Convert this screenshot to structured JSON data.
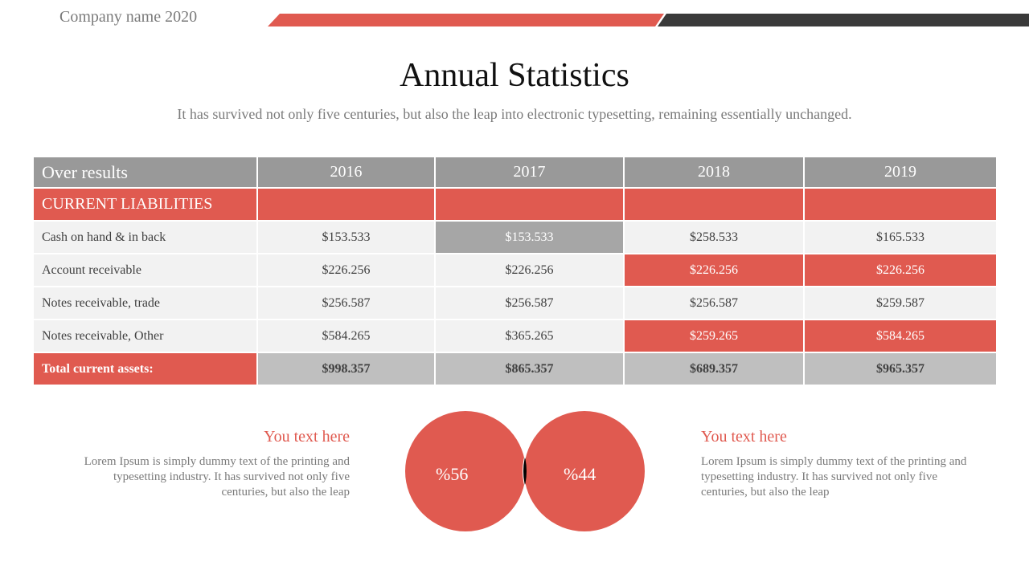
{
  "company": "Company name 2020",
  "colors": {
    "accent": "#e05a50",
    "dark": "#3a3a3a",
    "header_gray": "#999999",
    "total_gray": "#bfbfbf",
    "row_bg": "#f2f2f2"
  },
  "title": "Annual Statistics",
  "subtitle": "It has survived not only five centuries, but also the leap into electronic typesetting, remaining essentially unchanged.",
  "table": {
    "header": [
      "Over results",
      "2016",
      "2017",
      "2018",
      "2019"
    ],
    "section": "CURRENT LIABILITIES",
    "rows": [
      {
        "label": "Cash on hand & in back",
        "values": [
          "$153.533",
          "$153.533",
          "$258.533",
          "$165.533"
        ]
      },
      {
        "label": "Account receivable",
        "values": [
          "$226.256",
          "$226.256",
          "$226.256",
          "$226.256"
        ]
      },
      {
        "label": "Notes receivable, trade",
        "values": [
          "$256.587",
          "$256.587",
          "$256.587",
          "$259.587"
        ]
      },
      {
        "label": "Notes receivable, Other",
        "values": [
          "$584.265",
          "$365.265",
          "$259.265",
          "$584.265"
        ]
      }
    ],
    "total": {
      "label": "Total current assets:",
      "values": [
        "$998.357",
        "$865.357",
        "$689.357",
        "$965.357"
      ]
    }
  },
  "venn": {
    "left_label": "%56",
    "right_label": "%44"
  },
  "captions": {
    "left": {
      "heading": "You text here",
      "body": "Lorem Ipsum is simply dummy text of the printing and typesetting industry. It has survived not only five centuries, but also the leap"
    },
    "right": {
      "heading": "You text here",
      "body": "Lorem Ipsum is simply dummy text of the printing and typesetting industry. It has survived not only five centuries, but also the leap"
    }
  }
}
